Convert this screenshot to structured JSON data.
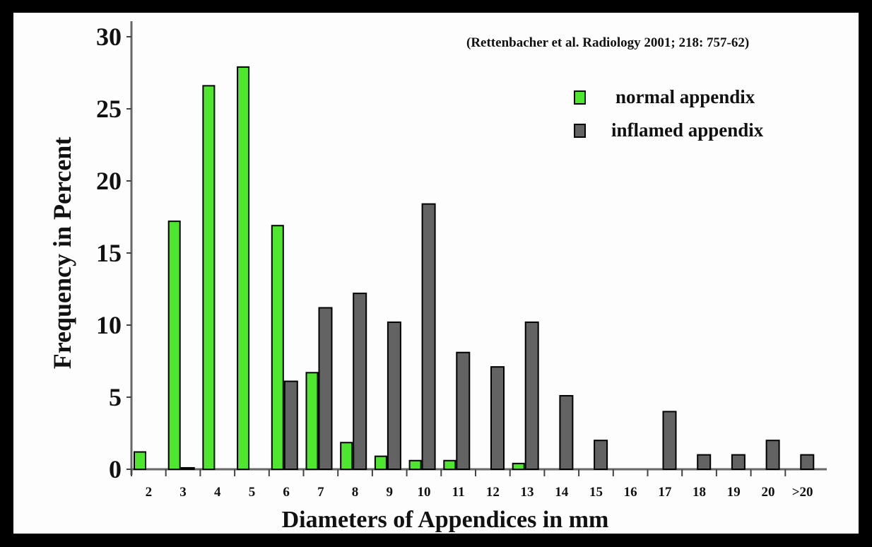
{
  "chart_data": {
    "type": "bar",
    "title": "",
    "citation": "(Rettenbacher et al. Radiology 2001; 218: 757-62)",
    "xlabel": "Diameters of Appendices in mm",
    "ylabel": "Frequency in Percent",
    "ylim": [
      0,
      30
    ],
    "yticks": [
      "0",
      "5",
      "10",
      "15",
      "20",
      "25",
      "30"
    ],
    "grid": false,
    "legend_position": "top-right",
    "categories": [
      "2",
      "3",
      "4",
      "5",
      "6",
      "7",
      "8",
      "9",
      "10",
      "11",
      "12",
      "13",
      "14",
      "15",
      "16",
      "17",
      "18",
      "19",
      "20",
      ">20"
    ],
    "series": [
      {
        "name": "normal appendix",
        "color": "#4ee62e",
        "values": [
          1.2,
          17.2,
          26.6,
          27.9,
          16.9,
          6.7,
          1.85,
          0.9,
          0.6,
          0.6,
          0,
          0.4,
          0,
          0,
          0,
          0,
          0,
          0,
          0,
          0
        ]
      },
      {
        "name": "inflamed appendix",
        "color": "#636363",
        "values": [
          0,
          0.1,
          0,
          0,
          6.1,
          11.2,
          12.2,
          10.2,
          18.4,
          8.1,
          7.1,
          10.2,
          5.1,
          2.0,
          0,
          4.0,
          1.0,
          1.0,
          2.0,
          1.0
        ]
      }
    ]
  }
}
